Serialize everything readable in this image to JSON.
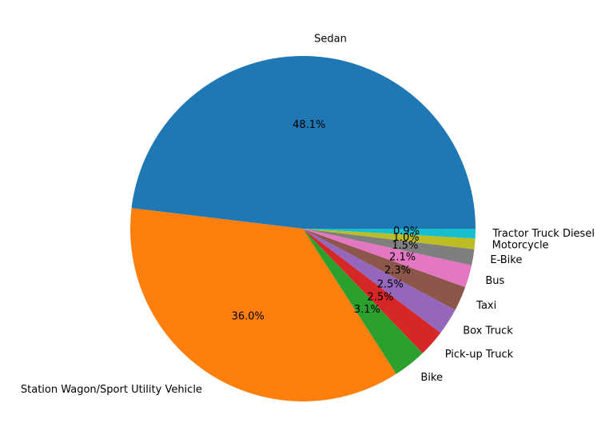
{
  "chart_data": {
    "type": "pie",
    "title": "",
    "categories": [
      "Sedan",
      "Station Wagon/Sport Utility Vehicle",
      "Bike",
      "Pick-up Truck",
      "Box Truck",
      "Taxi",
      "Bus",
      "E-Bike",
      "Motorcycle",
      "Tractor Truck Diesel"
    ],
    "values": [
      48.1,
      36.0,
      3.1,
      2.5,
      2.5,
      2.3,
      2.1,
      1.5,
      1.0,
      0.9
    ],
    "value_labels": [
      "48.1%",
      "36.0%",
      "3.1%",
      "2.5%",
      "2.5%",
      "2.3%",
      "2.1%",
      "1.5%",
      "1.0%",
      "0.9%"
    ],
    "colors": [
      "#1f77b4",
      "#ff7f0e",
      "#2ca02c",
      "#d62728",
      "#9467bd",
      "#8c564b",
      "#e377c2",
      "#7f7f7f",
      "#bcbd22",
      "#17becf"
    ],
    "start_angle_deg": 0,
    "direction": "counterclockwise",
    "legend": "none"
  }
}
